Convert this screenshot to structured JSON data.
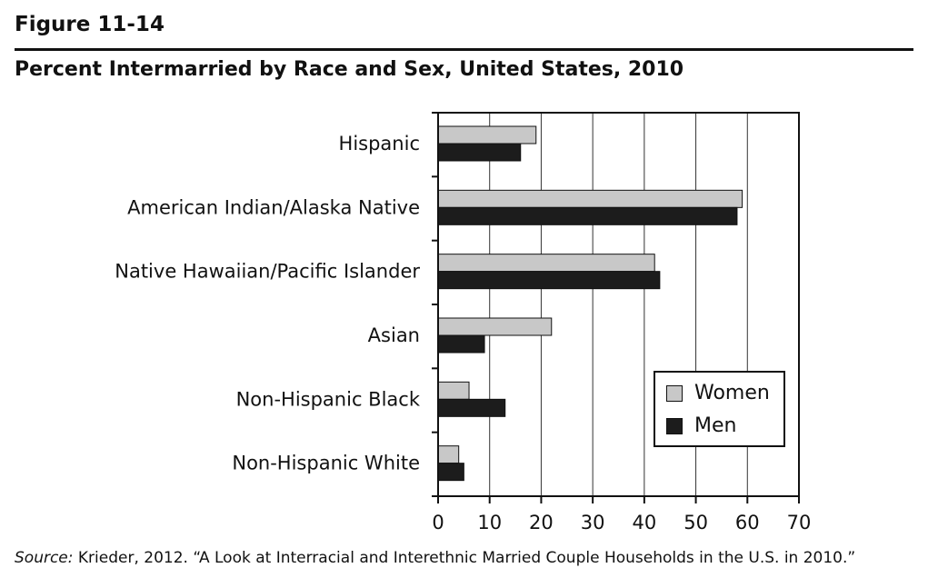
{
  "figure_label": "Figure 11-14",
  "source": {
    "label": "Source:",
    "text": " Krieder, 2012. “A Look at Interracial and Interethnic Married Couple Households in the U.S. in 2010.”"
  },
  "colors": {
    "women": "#c8c8c8",
    "men": "#1c1c1c",
    "axis": "#111111",
    "grid": "#333333"
  },
  "chart_data": {
    "type": "bar",
    "orientation": "horizontal",
    "title": "Percent Intermarried by Race and Sex, United States, 2010",
    "categories": [
      "Hispanic",
      "American Indian/Alaska Native",
      "Native Hawaiian/Pacific Islander",
      "Asian",
      "Non-Hispanic Black",
      "Non-Hispanic White"
    ],
    "series": [
      {
        "name": "Women",
        "values": [
          19,
          59,
          42,
          22,
          6,
          4
        ]
      },
      {
        "name": "Men",
        "values": [
          16,
          58,
          43,
          9,
          13,
          5
        ]
      }
    ],
    "xlim": [
      0,
      70
    ],
    "xticks": [
      0,
      10,
      20,
      30,
      40,
      50,
      60,
      70
    ],
    "xlabel": "",
    "ylabel": "",
    "grid": "vertical",
    "legend_position": "bottom-right"
  }
}
